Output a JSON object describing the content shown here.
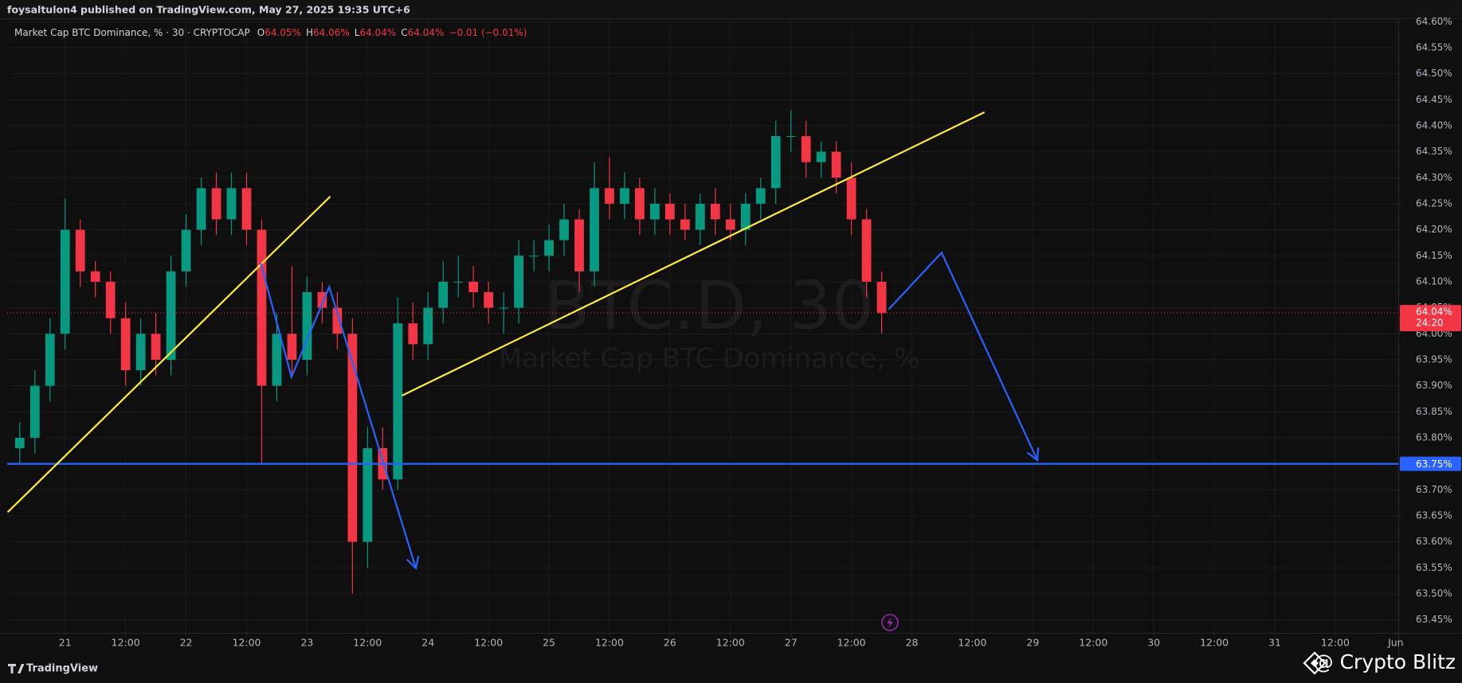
{
  "header": {
    "publisher": "foysaltulon4 published on TradingView.com, May 27, 2025 19:35 UTC+6"
  },
  "chart_data": {
    "type": "candlestick",
    "title": "Market Cap BTC Dominance, % · 30 · CRYPTOCAP",
    "ohlc_legend": [
      {
        "prefix": "O",
        "text": "64.05%"
      },
      {
        "prefix": "H",
        "text": "64.06%"
      },
      {
        "prefix": "L",
        "text": "64.04%"
      },
      {
        "prefix": "C",
        "text": "64.04%"
      }
    ],
    "change": "−0.01 (−0.01%)",
    "watermark": "BTC.D, 30",
    "watermark_subtitle": "Market Cap BTC Dominance, %",
    "up_color": "#089981",
    "down_color": "#f23645",
    "x": [
      -9,
      -6,
      -3,
      0,
      3,
      6,
      9,
      12,
      15,
      18,
      21,
      24,
      27,
      30,
      33,
      36,
      39,
      42,
      45,
      48,
      51,
      54,
      57,
      60,
      63,
      66,
      69,
      72,
      75,
      78,
      81,
      84,
      87,
      90,
      93,
      96,
      99,
      102,
      105,
      108,
      111,
      114,
      117,
      120,
      123,
      126,
      129,
      132,
      135,
      138,
      141,
      144,
      147,
      150,
      153,
      156,
      159,
      162
    ],
    "open": [
      63.78,
      63.8,
      63.9,
      64.0,
      64.2,
      64.12,
      64.1,
      64.03,
      63.93,
      64.0,
      63.95,
      64.12,
      64.2,
      64.28,
      64.22,
      64.28,
      64.2,
      63.9,
      64.0,
      63.95,
      64.08,
      64.05,
      64.0,
      63.6,
      63.78,
      63.72,
      64.02,
      63.98,
      64.05,
      64.1,
      64.1,
      64.08,
      64.05,
      64.05,
      64.15,
      64.15,
      64.18,
      64.22,
      64.12,
      64.28,
      64.25,
      64.28,
      64.22,
      64.25,
      64.22,
      64.2,
      64.25,
      64.22,
      64.2,
      64.25,
      64.28,
      64.38,
      64.38,
      64.33,
      64.35,
      64.3,
      64.22,
      64.1
    ],
    "high": [
      63.83,
      63.93,
      64.03,
      64.26,
      64.22,
      64.14,
      64.12,
      64.06,
      64.03,
      64.04,
      64.15,
      64.23,
      64.3,
      64.31,
      64.31,
      64.31,
      64.22,
      64.04,
      64.13,
      64.11,
      64.1,
      64.08,
      64.03,
      63.82,
      63.82,
      64.07,
      64.06,
      64.08,
      64.14,
      64.15,
      64.13,
      64.1,
      64.08,
      64.18,
      64.18,
      64.21,
      64.25,
      64.24,
      64.33,
      64.34,
      64.31,
      64.3,
      64.28,
      64.27,
      64.25,
      64.27,
      64.28,
      64.25,
      64.27,
      64.3,
      64.41,
      64.43,
      64.41,
      64.37,
      64.37,
      64.33,
      64.24,
      64.12
    ],
    "low": [
      63.75,
      63.77,
      63.87,
      63.97,
      64.09,
      64.07,
      64.0,
      63.9,
      63.9,
      63.92,
      63.92,
      64.09,
      64.17,
      64.19,
      64.19,
      64.17,
      63.75,
      63.87,
      63.92,
      63.92,
      64.02,
      63.97,
      63.5,
      63.55,
      63.7,
      63.7,
      63.95,
      63.95,
      64.02,
      64.07,
      64.05,
      64.02,
      64.0,
      64.02,
      64.12,
      64.12,
      64.15,
      64.08,
      64.09,
      64.22,
      64.22,
      64.19,
      64.19,
      64.19,
      64.18,
      64.17,
      64.19,
      64.18,
      64.17,
      64.22,
      64.25,
      64.35,
      64.3,
      64.3,
      64.27,
      64.19,
      64.07,
      64.0
    ],
    "close": [
      63.8,
      63.9,
      64.0,
      64.2,
      64.12,
      64.1,
      64.03,
      63.93,
      64.0,
      63.95,
      64.12,
      64.2,
      64.28,
      64.22,
      64.28,
      64.2,
      63.9,
      64.0,
      63.95,
      64.08,
      64.05,
      64.0,
      63.6,
      63.78,
      63.72,
      64.02,
      63.98,
      64.05,
      64.1,
      64.1,
      64.08,
      64.05,
      64.05,
      64.15,
      64.15,
      64.18,
      64.22,
      64.12,
      64.28,
      64.25,
      64.28,
      64.22,
      64.25,
      64.22,
      64.2,
      64.25,
      64.22,
      64.2,
      64.25,
      64.28,
      64.38,
      64.38,
      64.33,
      64.35,
      64.3,
      64.22,
      64.1,
      64.04
    ],
    "xlim": [
      -11.5,
      264.5
    ],
    "xticks": [
      {
        "value": 0,
        "label": "21"
      },
      {
        "value": 12,
        "label": "12:00"
      },
      {
        "value": 24,
        "label": "22"
      },
      {
        "value": 36,
        "label": "12:00"
      },
      {
        "value": 48,
        "label": "23"
      },
      {
        "value": 60,
        "label": "12:00"
      },
      {
        "value": 72,
        "label": "24"
      },
      {
        "value": 84,
        "label": "12:00"
      },
      {
        "value": 96,
        "label": "25"
      },
      {
        "value": 108,
        "label": "12:00"
      },
      {
        "value": 120,
        "label": "26"
      },
      {
        "value": 132,
        "label": "12:00"
      },
      {
        "value": 144,
        "label": "27"
      },
      {
        "value": 156,
        "label": "12:00"
      },
      {
        "value": 168,
        "label": "28"
      },
      {
        "value": 180,
        "label": "12:00"
      },
      {
        "value": 192,
        "label": "29"
      },
      {
        "value": 204,
        "label": "12:00"
      },
      {
        "value": 216,
        "label": "30"
      },
      {
        "value": 228,
        "label": "12:00"
      },
      {
        "value": 240,
        "label": "31"
      },
      {
        "value": 252,
        "label": "12:00"
      },
      {
        "value": 264,
        "label": "Jun"
      }
    ],
    "ylim": [
      63.425,
      64.605
    ],
    "yticks": [
      {
        "value": 63.45,
        "label": "63.45%"
      },
      {
        "value": 63.5,
        "label": "63.50%"
      },
      {
        "value": 63.55,
        "label": "63.55%"
      },
      {
        "value": 63.6,
        "label": "63.60%"
      },
      {
        "value": 63.65,
        "label": "63.65%"
      },
      {
        "value": 63.7,
        "label": "63.70%"
      },
      {
        "value": 63.75,
        "label": "63.75%"
      },
      {
        "value": 63.8,
        "label": "63.80%"
      },
      {
        "value": 63.85,
        "label": "63.85%"
      },
      {
        "value": 63.9,
        "label": "63.90%"
      },
      {
        "value": 63.95,
        "label": "63.95%"
      },
      {
        "value": 64.0,
        "label": "64.00%"
      },
      {
        "value": 64.05,
        "label": "64.05%"
      },
      {
        "value": 64.1,
        "label": "64.10%"
      },
      {
        "value": 64.15,
        "label": "64.15%"
      },
      {
        "value": 64.2,
        "label": "64.20%"
      },
      {
        "value": 64.25,
        "label": "64.25%"
      },
      {
        "value": 64.3,
        "label": "64.30%"
      },
      {
        "value": 64.35,
        "label": "64.35%"
      },
      {
        "value": 64.4,
        "label": "64.40%"
      },
      {
        "value": 64.45,
        "label": "64.45%"
      },
      {
        "value": 64.5,
        "label": "64.50%"
      },
      {
        "value": 64.55,
        "label": "64.55%"
      },
      {
        "value": 64.6,
        "label": "64.60%"
      }
    ],
    "grid": true,
    "last_price": {
      "value": 64.04,
      "label": "64.04%",
      "countdown": "24:20",
      "color": "#f23645"
    },
    "hline": {
      "value": 63.75,
      "label": "63.75%",
      "color": "#2962ff"
    },
    "drawings": [
      {
        "color": "#ffeb3b",
        "arrow": false,
        "points": [
          [
            -11.4,
            63.657
          ],
          [
            52.6,
            64.264
          ]
        ]
      },
      {
        "color": "#ffeb3b",
        "arrow": false,
        "points": [
          [
            66.8,
            63.881
          ],
          [
            182.4,
            64.426
          ]
        ]
      },
      {
        "color": "#2962ff",
        "arrow": true,
        "points": [
          [
            38.8,
            64.136
          ],
          [
            44.9,
            63.917
          ],
          [
            52.4,
            64.09
          ],
          [
            69.6,
            63.549
          ]
        ]
      },
      {
        "color": "#2962ff",
        "arrow": true,
        "points": [
          [
            163.4,
            64.047
          ],
          [
            173.9,
            64.156
          ],
          [
            192.9,
            63.757
          ]
        ]
      }
    ]
  },
  "footer": {
    "brand": "TradingView",
    "credit": "@ Crypto Blitz"
  }
}
